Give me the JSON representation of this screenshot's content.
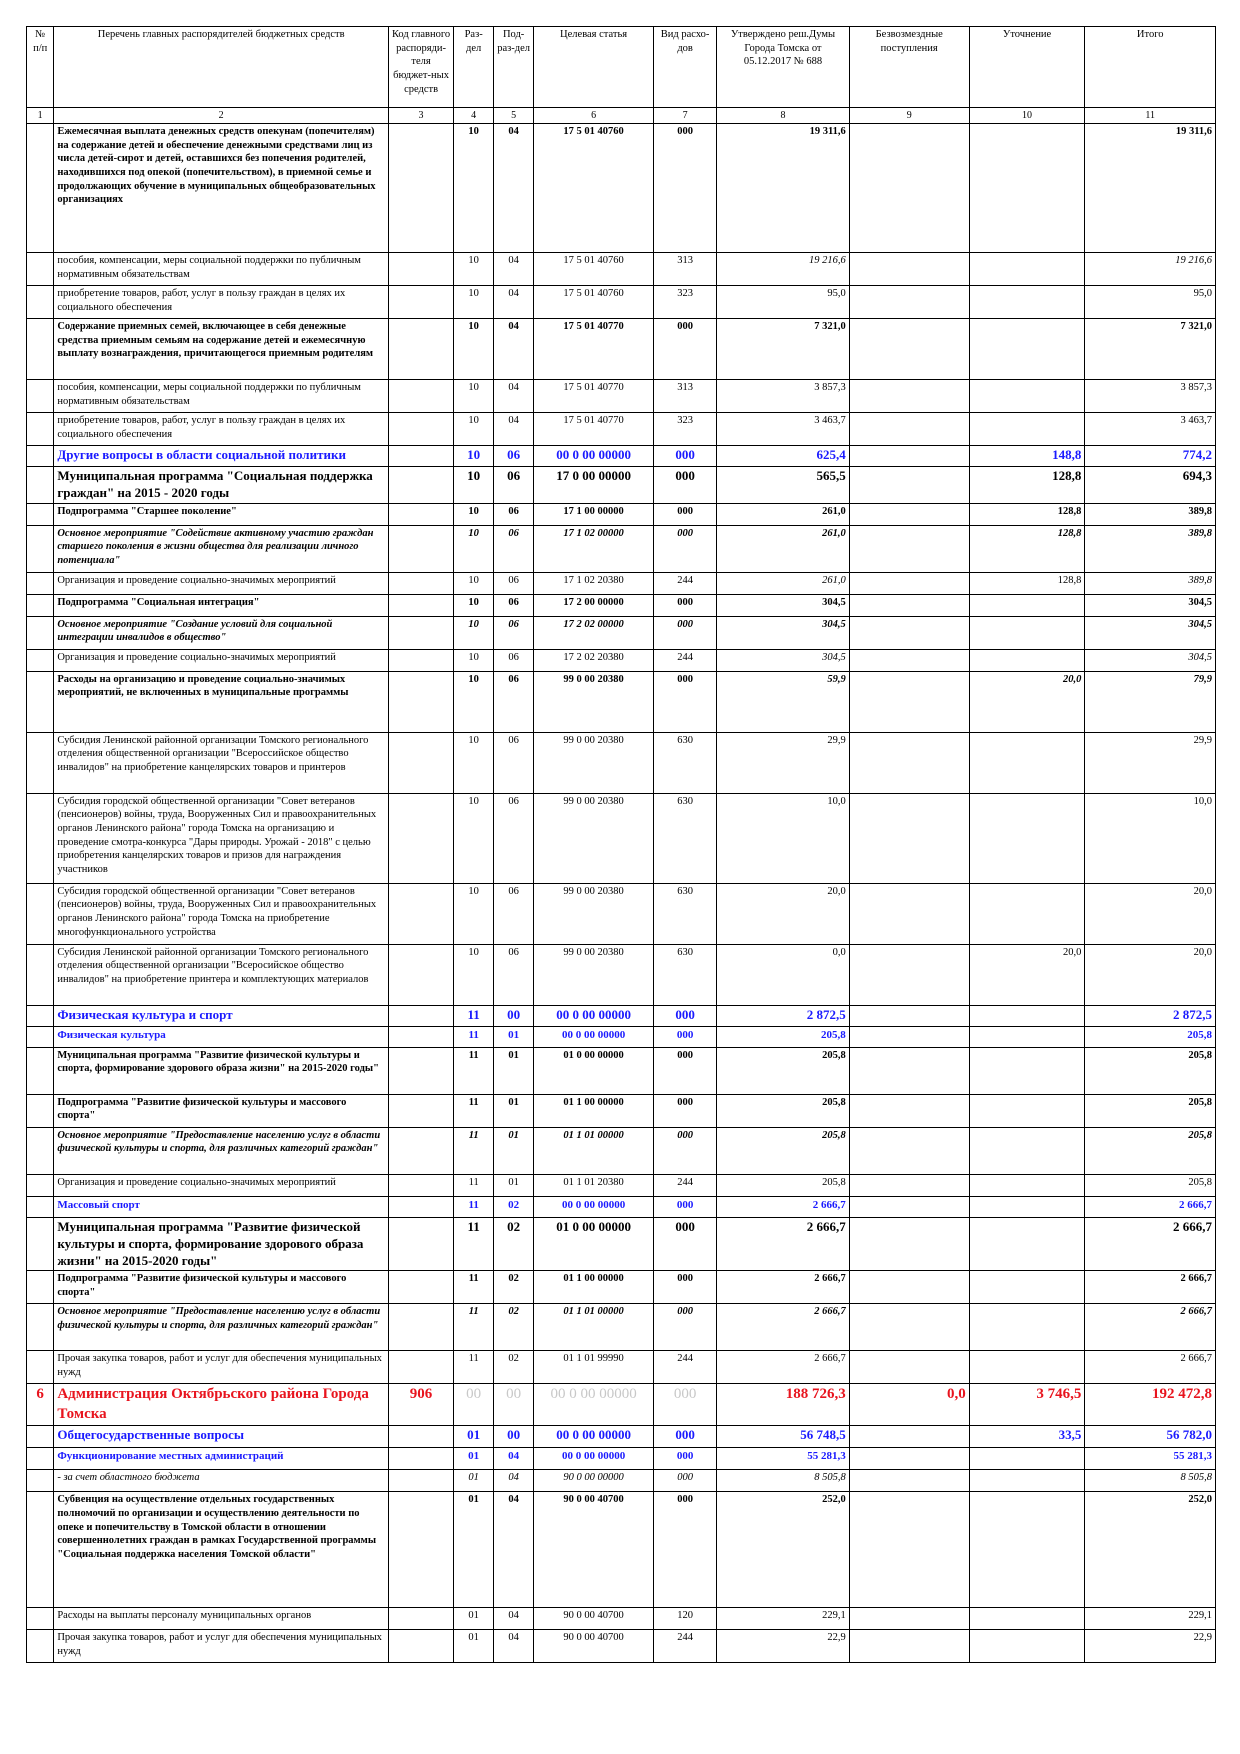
{
  "header": {
    "c1": "№ п/п",
    "c2": "Перечень главных распорядителей бюджетных средств",
    "c3": "Код главного распоряди-теля бюджет-ных средств",
    "c4": "Раз-дел",
    "c5": "Под-раз-дел",
    "c6": "Целевая статья",
    "c7": "Вид расхо-дов",
    "c8": "Утверждено реш.Думы Города Томска от 05.12.2017 № 688",
    "c9": "Безвозмездные поступления",
    "c10": "Уточнение",
    "c11": "Итого"
  },
  "colnums": [
    "1",
    "2",
    "3",
    "4",
    "5",
    "6",
    "7",
    "8",
    "9",
    "10",
    "11"
  ],
  "rows": [
    {
      "num": "",
      "name": "Ежемесячная выплата денежных средств опекунам (попечителям) на содержание детей и обеспечение денежными средствами лиц из числа детей-сирот и детей, оставшихся без попечения родителей, находившихся под опекой (попечительством), в приемной семье и продолжающих обучение в муниципальных общеобразовательных организациях",
      "code": "",
      "razdel": "10",
      "podrazdel": "04",
      "statya": "17 5 01 40760",
      "vid": "000",
      "approved": "19 311,6",
      "free": "",
      "clar": "",
      "total": "19 311,6"
    },
    {
      "num": "",
      "name": "пособия, компенсации, меры социальной поддержки по публичным нормативным обязательствам",
      "code": "",
      "razdel": "10",
      "podrazdel": "04",
      "statya": "17 5 01 40760",
      "vid": "313",
      "approved": "19 216,6",
      "free": "",
      "clar": "",
      "total": "19 216,6"
    },
    {
      "num": "",
      "name": "приобретение товаров, работ, услуг в пользу граждан в целях их социального обеспечения",
      "code": "",
      "razdel": "10",
      "podrazdel": "04",
      "statya": "17 5 01 40760",
      "vid": "323",
      "approved": "95,0",
      "free": "",
      "clar": "",
      "total": "95,0"
    },
    {
      "num": "",
      "name": "Содержание приемных семей, включающее в себя денежные средства приемным семьям на содержание детей и ежемесячную выплату вознаграждения, причитающегося приемным родителям",
      "code": "",
      "razdel": "10",
      "podrazdel": "04",
      "statya": "17 5 01 40770",
      "vid": "000",
      "approved": "7 321,0",
      "free": "",
      "clar": "",
      "total": "7 321,0"
    },
    {
      "num": "",
      "name": "пособия, компенсации, меры социальной поддержки по публичным нормативным обязательствам",
      "code": "",
      "razdel": "10",
      "podrazdel": "04",
      "statya": "17 5 01 40770",
      "vid": "313",
      "approved": "3 857,3",
      "free": "",
      "clar": "",
      "total": "3 857,3"
    },
    {
      "num": "",
      "name": "приобретение товаров, работ, услуг в пользу граждан в целях их социального обеспечения",
      "code": "",
      "razdel": "10",
      "podrazdel": "04",
      "statya": "17 5 01 40770",
      "vid": "323",
      "approved": "3 463,7",
      "free": "",
      "clar": "",
      "total": "3 463,7"
    },
    {
      "num": "",
      "name": "Другие вопросы в области социальной политики",
      "code": "",
      "razdel": "10",
      "podrazdel": "06",
      "statya": "00 0 00 00000",
      "vid": "000",
      "approved": "625,4",
      "free": "",
      "clar": "148,8",
      "total": "774,2"
    },
    {
      "num": "",
      "name": "Муниципальная программа \"Социальная поддержка граждан\" на 2015 - 2020 годы",
      "code": "",
      "razdel": "10",
      "podrazdel": "06",
      "statya": "17 0 00 00000",
      "vid": "000",
      "approved": "565,5",
      "free": "",
      "clar": "128,8",
      "total": "694,3"
    },
    {
      "num": "",
      "name": "Подпрограмма \"Старшее поколение\"",
      "code": "",
      "razdel": "10",
      "podrazdel": "06",
      "statya": "17 1 00 00000",
      "vid": "000",
      "approved": "261,0",
      "free": "",
      "clar": "128,8",
      "total": "389,8"
    },
    {
      "num": "",
      "name": "Основное мероприятие \"Содействие активному участию граждан старшего поколения в жизни общества для реализации личного потенциала\"",
      "code": "",
      "razdel": "10",
      "podrazdel": "06",
      "statya": "17 1 02 00000",
      "vid": "000",
      "approved": "261,0",
      "free": "",
      "clar": "128,8",
      "total": "389,8"
    },
    {
      "num": "",
      "name": "Организация и проведение социально-значимых мероприятий",
      "code": "",
      "razdel": "10",
      "podrazdel": "06",
      "statya": "17 1 02 20380",
      "vid": "244",
      "approved": "261,0",
      "free": "",
      "clar": "128,8",
      "total": "389,8"
    },
    {
      "num": "",
      "name": "Подпрограмма \"Социальная интеграция\"",
      "code": "",
      "razdel": "10",
      "podrazdel": "06",
      "statya": "17 2 00 00000",
      "vid": "000",
      "approved": "304,5",
      "free": "",
      "clar": "",
      "total": "304,5"
    },
    {
      "num": "",
      "name": "Основное мероприятие \"Создание условий для социальной интеграции инвалидов в общество\"",
      "code": "",
      "razdel": "10",
      "podrazdel": "06",
      "statya": "17 2 02 00000",
      "vid": "000",
      "approved": "304,5",
      "free": "",
      "clar": "",
      "total": "304,5"
    },
    {
      "num": "",
      "name": "Организация и проведение социально-значимых мероприятий",
      "code": "",
      "razdel": "10",
      "podrazdel": "06",
      "statya": "17 2 02 20380",
      "vid": "244",
      "approved": "304,5",
      "free": "",
      "clar": "",
      "total": "304,5"
    },
    {
      "num": "",
      "name": "Расходы на организацию и проведение социально-значимых мероприятий, не включенных в муниципальные программы",
      "code": "",
      "razdel": "10",
      "podrazdel": "06",
      "statya": "99 0 00 20380",
      "vid": "000",
      "approved": "59,9",
      "free": "",
      "clar": "20,0",
      "total": "79,9"
    },
    {
      "num": "",
      "name": "Субсидия Ленинской районной организации Томского регионального отделения общественной организации \"Всероссийское общество инвалидов\" на приобретение канцелярских товаров и принтеров",
      "code": "",
      "razdel": "10",
      "podrazdel": "06",
      "statya": "99 0 00 20380",
      "vid": "630",
      "approved": "29,9",
      "free": "",
      "clar": "",
      "total": "29,9"
    },
    {
      "num": "",
      "name": "Субсидия городской общественной организации \"Совет ветеранов (пенсионеров) войны, труда, Вооруженных Сил и правоохранительных органов Ленинского района\" города Томска на организацию и проведение смотра-конкурса \"Дары природы. Урожай - 2018\" с целью приобретения канцелярских товаров и призов для награждения участников",
      "code": "",
      "razdel": "10",
      "podrazdel": "06",
      "statya": "99 0 00 20380",
      "vid": "630",
      "approved": "10,0",
      "free": "",
      "clar": "",
      "total": "10,0"
    },
    {
      "num": "",
      "name": "Субсидия городской общественной организации \"Совет ветеранов (пенсионеров) войны, труда, Вооруженных Сил и правоохранительных органов Ленинского района\" города Томска на приобретение многофункционального устройства",
      "code": "",
      "razdel": "10",
      "podrazdel": "06",
      "statya": "99 0 00 20380",
      "vid": "630",
      "approved": "20,0",
      "free": "",
      "clar": "",
      "total": "20,0"
    },
    {
      "num": "",
      "name": "Субсидия Ленинской районной организации Томского регионального отделения общественной организации \"Всеросийское общество инвалидов\" на приобретение принтера и комплектующих материалов",
      "code": "",
      "razdel": "10",
      "podrazdel": "06",
      "statya": "99 0 00 20380",
      "vid": "630",
      "approved": "0,0",
      "free": "",
      "clar": "20,0",
      "total": "20,0"
    },
    {
      "num": "",
      "name": "Физическая культура и спорт",
      "code": "",
      "razdel": "11",
      "podrazdel": "00",
      "statya": "00 0 00 00000",
      "vid": "000",
      "approved": "2 872,5",
      "free": "",
      "clar": "",
      "total": "2 872,5"
    },
    {
      "num": "",
      "name": "Физическая культура",
      "code": "",
      "razdel": "11",
      "podrazdel": "01",
      "statya": "00 0 00 00000",
      "vid": "000",
      "approved": "205,8",
      "free": "",
      "clar": "",
      "total": "205,8"
    },
    {
      "num": "",
      "name": "Муниципальная программа \"Развитие физической культуры и спорта, формирование здорового образа жизни\" на 2015-2020 годы\"",
      "code": "",
      "razdel": "11",
      "podrazdel": "01",
      "statya": "01 0 00 00000",
      "vid": "000",
      "approved": "205,8",
      "free": "",
      "clar": "",
      "total": "205,8"
    },
    {
      "num": "",
      "name": "Подпрограмма \"Развитие физической культуры и массового спорта\"",
      "code": "",
      "razdel": "11",
      "podrazdel": "01",
      "statya": "01 1 00 00000",
      "vid": "000",
      "approved": "205,8",
      "free": "",
      "clar": "",
      "total": "205,8"
    },
    {
      "num": "",
      "name": "Основное мероприятие \"Предоставление населению услуг в области физической культуры и спорта, для различных категорий граждан\"",
      "code": "",
      "razdel": "11",
      "podrazdel": "01",
      "statya": "01 1 01 00000",
      "vid": "000",
      "approved": "205,8",
      "free": "",
      "clar": "",
      "total": "205,8"
    },
    {
      "num": "",
      "name": "Организация и проведение социально-значимых мероприятий",
      "code": "",
      "razdel": "11",
      "podrazdel": "01",
      "statya": "01 1 01 20380",
      "vid": "244",
      "approved": "205,8",
      "free": "",
      "clar": "",
      "total": "205,8"
    },
    {
      "num": "",
      "name": "Массовый спорт",
      "code": "",
      "razdel": "11",
      "podrazdel": "02",
      "statya": "00 0 00 00000",
      "vid": "000",
      "approved": "2 666,7",
      "free": "",
      "clar": "",
      "total": "2 666,7"
    },
    {
      "num": "",
      "name": "Муниципальная программа \"Развитие физической культуры и спорта, формирование здорового образа жизни\" на 2015-2020 годы\"",
      "code": "",
      "razdel": "11",
      "podrazdel": "02",
      "statya": "01 0 00 00000",
      "vid": "000",
      "approved": "2 666,7",
      "free": "",
      "clar": "",
      "total": "2 666,7"
    },
    {
      "num": "",
      "name": "Подпрограмма \"Развитие физической культуры и массового спорта\"",
      "code": "",
      "razdel": "11",
      "podrazdel": "02",
      "statya": "01 1 00 00000",
      "vid": "000",
      "approved": "2 666,7",
      "free": "",
      "clar": "",
      "total": "2 666,7"
    },
    {
      "num": "",
      "name": "Основное мероприятие \"Предоставление населению услуг в области физической культуры и спорта, для различных категорий граждан\"",
      "code": "",
      "razdel": "11",
      "podrazdel": "02",
      "statya": "01 1 01 00000",
      "vid": "000",
      "approved": "2 666,7",
      "free": "",
      "clar": "",
      "total": "2 666,7"
    },
    {
      "num": "",
      "name": "Прочая закупка товаров, работ и услуг для обеспечения муниципальных нужд",
      "code": "",
      "razdel": "11",
      "podrazdel": "02",
      "statya": "01 1 01 99990",
      "vid": "244",
      "approved": "2 666,7",
      "free": "",
      "clar": "",
      "total": "2 666,7"
    },
    {
      "num": "6",
      "name": "Администрация Октябрьского района Города Томска",
      "code": "906",
      "razdel": "00",
      "podrazdel": "00",
      "statya": "00 0 00 00000",
      "vid": "000",
      "approved": "188 726,3",
      "free": "0,0",
      "clar": "3 746,5",
      "total": "192 472,8"
    },
    {
      "num": "",
      "name": "Общегосударственные вопросы",
      "code": "",
      "razdel": "01",
      "podrazdel": "00",
      "statya": "00 0 00 00000",
      "vid": "000",
      "approved": "56 748,5",
      "free": "",
      "clar": "33,5",
      "total": "56 782,0"
    },
    {
      "num": "",
      "name": "Функционирование местных администраций",
      "code": "",
      "razdel": "01",
      "podrazdel": "04",
      "statya": "00 0 00 00000",
      "vid": "000",
      "approved": "55 281,3",
      "free": "",
      "clar": "",
      "total": "55 281,3"
    },
    {
      "num": "",
      "name": "- за счет областного бюджета",
      "code": "",
      "razdel": "01",
      "podrazdel": "04",
      "statya": "90 0 00 00000",
      "vid": "000",
      "approved": "8 505,8",
      "free": "",
      "clar": "",
      "total": "8 505,8"
    },
    {
      "num": "",
      "name": "Субвенция на осуществление отдельных государственных полномочий по организации и осуществлению деятельности по опеке и попечительству в Томской области в отношении совершеннолетних граждан в рамках Государственной программы \"Социальная поддержка населения Томской области\"",
      "code": "",
      "razdel": "01",
      "podrazdel": "04",
      "statya": "90 0 00 40700",
      "vid": "000",
      "approved": "252,0",
      "free": "",
      "clar": "",
      "total": "252,0"
    },
    {
      "num": "",
      "name": "Расходы на выплаты персоналу муниципальных органов",
      "code": "",
      "razdel": "01",
      "podrazdel": "04",
      "statya": "90 0 00 40700",
      "vid": "120",
      "approved": "229,1",
      "free": "",
      "clar": "",
      "total": "229,1"
    },
    {
      "num": "",
      "name": "Прочая закупка товаров, работ и услуг для обеспечения муниципальных нужд",
      "code": "",
      "razdel": "01",
      "podrazdel": "04",
      "statya": "90 0 00 40700",
      "vid": "244",
      "approved": "22,9",
      "free": "",
      "clar": "",
      "total": "22,9"
    }
  ]
}
